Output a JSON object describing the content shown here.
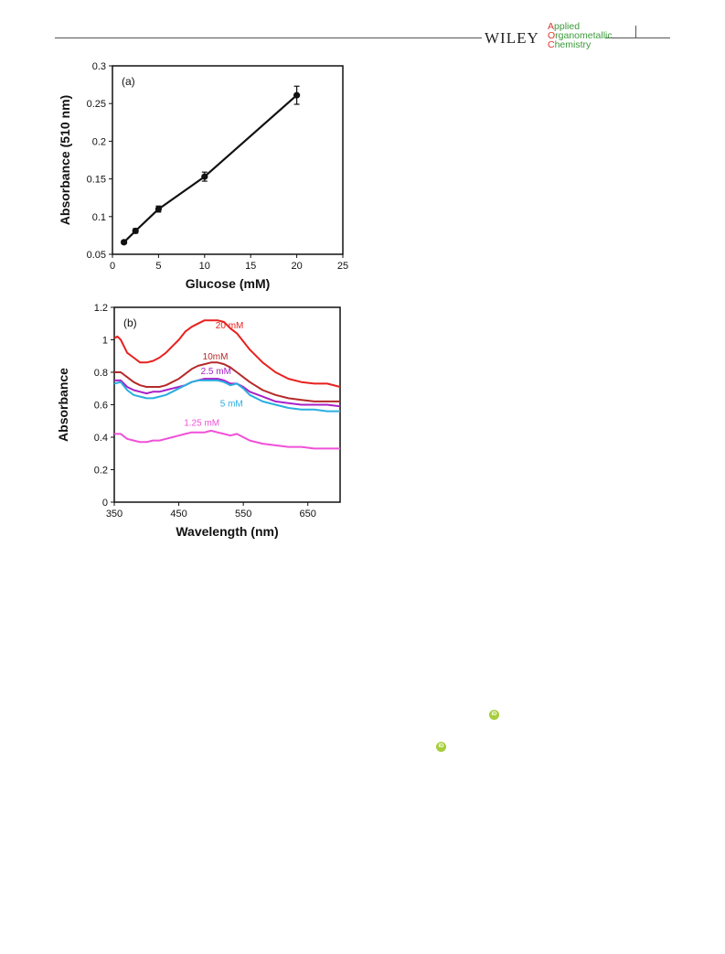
{
  "header": {
    "publisher": "WILEY",
    "journal_line1_cap": "A",
    "journal_line1_rest": "pplied",
    "journal_line2_cap": "O",
    "journal_line2_rest": "rganometallic",
    "journal_line3_cap": "C",
    "journal_line3_rest": "hemistry"
  },
  "orcid_label": "iD",
  "colors": {
    "green_accent": "#3a9a3a",
    "red_accent": "#d9382b",
    "orcid": "#a6ce39"
  },
  "chart_data": [
    {
      "type": "line",
      "panel_label": "(a)",
      "xlabel": "Glucose (mM)",
      "ylabel": "Absorbance (510 nm)",
      "xlim": [
        0,
        25
      ],
      "ylim": [
        0.05,
        0.3
      ],
      "xticks": [
        0,
        5,
        10,
        15,
        20,
        25
      ],
      "yticks": [
        0.05,
        0.1,
        0.15,
        0.2,
        0.25,
        0.3
      ],
      "grid": false,
      "series": [
        {
          "color": "#111111",
          "x": [
            1.25,
            2.5,
            5,
            10,
            20
          ],
          "y": [
            0.066,
            0.081,
            0.11,
            0.153,
            0.261
          ],
          "error": [
            0.002,
            0.003,
            0.004,
            0.006,
            0.012
          ]
        }
      ]
    },
    {
      "type": "line",
      "panel_label": "(b)",
      "xlabel": "Wavelength (nm)",
      "ylabel": "Absorbance",
      "xlim": [
        350,
        700
      ],
      "ylim": [
        0,
        1.2
      ],
      "xticks": [
        350,
        450,
        550,
        650
      ],
      "yticks": [
        0,
        0.2,
        0.4,
        0.6,
        0.8,
        1,
        1.2
      ],
      "grid": false,
      "series": [
        {
          "name": "20 mM",
          "color": "#e8211e",
          "label_pos": [
            507,
            1.07
          ],
          "x": [
            350,
            355,
            360,
            370,
            380,
            390,
            400,
            410,
            420,
            430,
            440,
            450,
            460,
            470,
            480,
            490,
            500,
            510,
            520,
            530,
            540,
            550,
            560,
            580,
            600,
            620,
            640,
            660,
            680,
            700
          ],
          "y": [
            1.01,
            1.02,
            1.0,
            0.92,
            0.89,
            0.86,
            0.86,
            0.87,
            0.89,
            0.92,
            0.96,
            1.0,
            1.05,
            1.08,
            1.1,
            1.12,
            1.12,
            1.12,
            1.11,
            1.07,
            1.04,
            0.99,
            0.94,
            0.86,
            0.8,
            0.76,
            0.74,
            0.73,
            0.73,
            0.71
          ]
        },
        {
          "name": "10mM",
          "color": "#b52a2a",
          "label_pos": [
            487,
            0.88
          ],
          "x": [
            350,
            360,
            370,
            380,
            390,
            400,
            410,
            420,
            430,
            440,
            450,
            460,
            470,
            480,
            490,
            500,
            510,
            520,
            530,
            540,
            550,
            560,
            580,
            600,
            620,
            640,
            660,
            680,
            700
          ],
          "y": [
            0.8,
            0.8,
            0.77,
            0.74,
            0.72,
            0.71,
            0.71,
            0.71,
            0.72,
            0.74,
            0.76,
            0.79,
            0.82,
            0.84,
            0.85,
            0.86,
            0.86,
            0.85,
            0.83,
            0.8,
            0.77,
            0.74,
            0.69,
            0.66,
            0.64,
            0.63,
            0.62,
            0.62,
            0.62
          ]
        },
        {
          "name": "2.5 mM",
          "color": "#a821c7",
          "label_pos": [
            484,
            0.79
          ],
          "x": [
            350,
            360,
            370,
            380,
            390,
            400,
            410,
            420,
            430,
            440,
            450,
            460,
            470,
            480,
            490,
            500,
            510,
            520,
            530,
            540,
            550,
            560,
            580,
            600,
            620,
            640,
            660,
            680,
            700
          ],
          "y": [
            0.75,
            0.75,
            0.71,
            0.69,
            0.68,
            0.67,
            0.68,
            0.68,
            0.69,
            0.7,
            0.71,
            0.72,
            0.74,
            0.75,
            0.76,
            0.76,
            0.76,
            0.75,
            0.73,
            0.73,
            0.71,
            0.68,
            0.65,
            0.62,
            0.61,
            0.6,
            0.6,
            0.6,
            0.59
          ]
        },
        {
          "name": "5 mM",
          "color": "#2aaee0",
          "label_pos": [
            514,
            0.59
          ],
          "x": [
            350,
            360,
            370,
            380,
            390,
            400,
            410,
            420,
            430,
            440,
            450,
            460,
            470,
            480,
            490,
            500,
            510,
            520,
            530,
            540,
            550,
            560,
            580,
            600,
            620,
            640,
            660,
            680,
            700
          ],
          "y": [
            0.73,
            0.74,
            0.69,
            0.66,
            0.65,
            0.64,
            0.64,
            0.65,
            0.66,
            0.68,
            0.7,
            0.72,
            0.74,
            0.75,
            0.75,
            0.75,
            0.75,
            0.74,
            0.72,
            0.73,
            0.7,
            0.66,
            0.62,
            0.6,
            0.58,
            0.57,
            0.57,
            0.56,
            0.56
          ]
        },
        {
          "name": "1.25 mM",
          "color": "#f050d8",
          "label_pos": [
            458,
            0.47
          ],
          "x": [
            350,
            360,
            370,
            380,
            390,
            400,
            410,
            420,
            430,
            440,
            450,
            460,
            470,
            480,
            490,
            500,
            510,
            520,
            530,
            540,
            550,
            560,
            580,
            600,
            620,
            640,
            660,
            680,
            700
          ],
          "y": [
            0.42,
            0.42,
            0.39,
            0.38,
            0.37,
            0.37,
            0.38,
            0.38,
            0.39,
            0.4,
            0.41,
            0.42,
            0.43,
            0.43,
            0.43,
            0.44,
            0.43,
            0.42,
            0.41,
            0.42,
            0.4,
            0.38,
            0.36,
            0.35,
            0.34,
            0.34,
            0.33,
            0.33,
            0.33
          ]
        }
      ]
    }
  ]
}
